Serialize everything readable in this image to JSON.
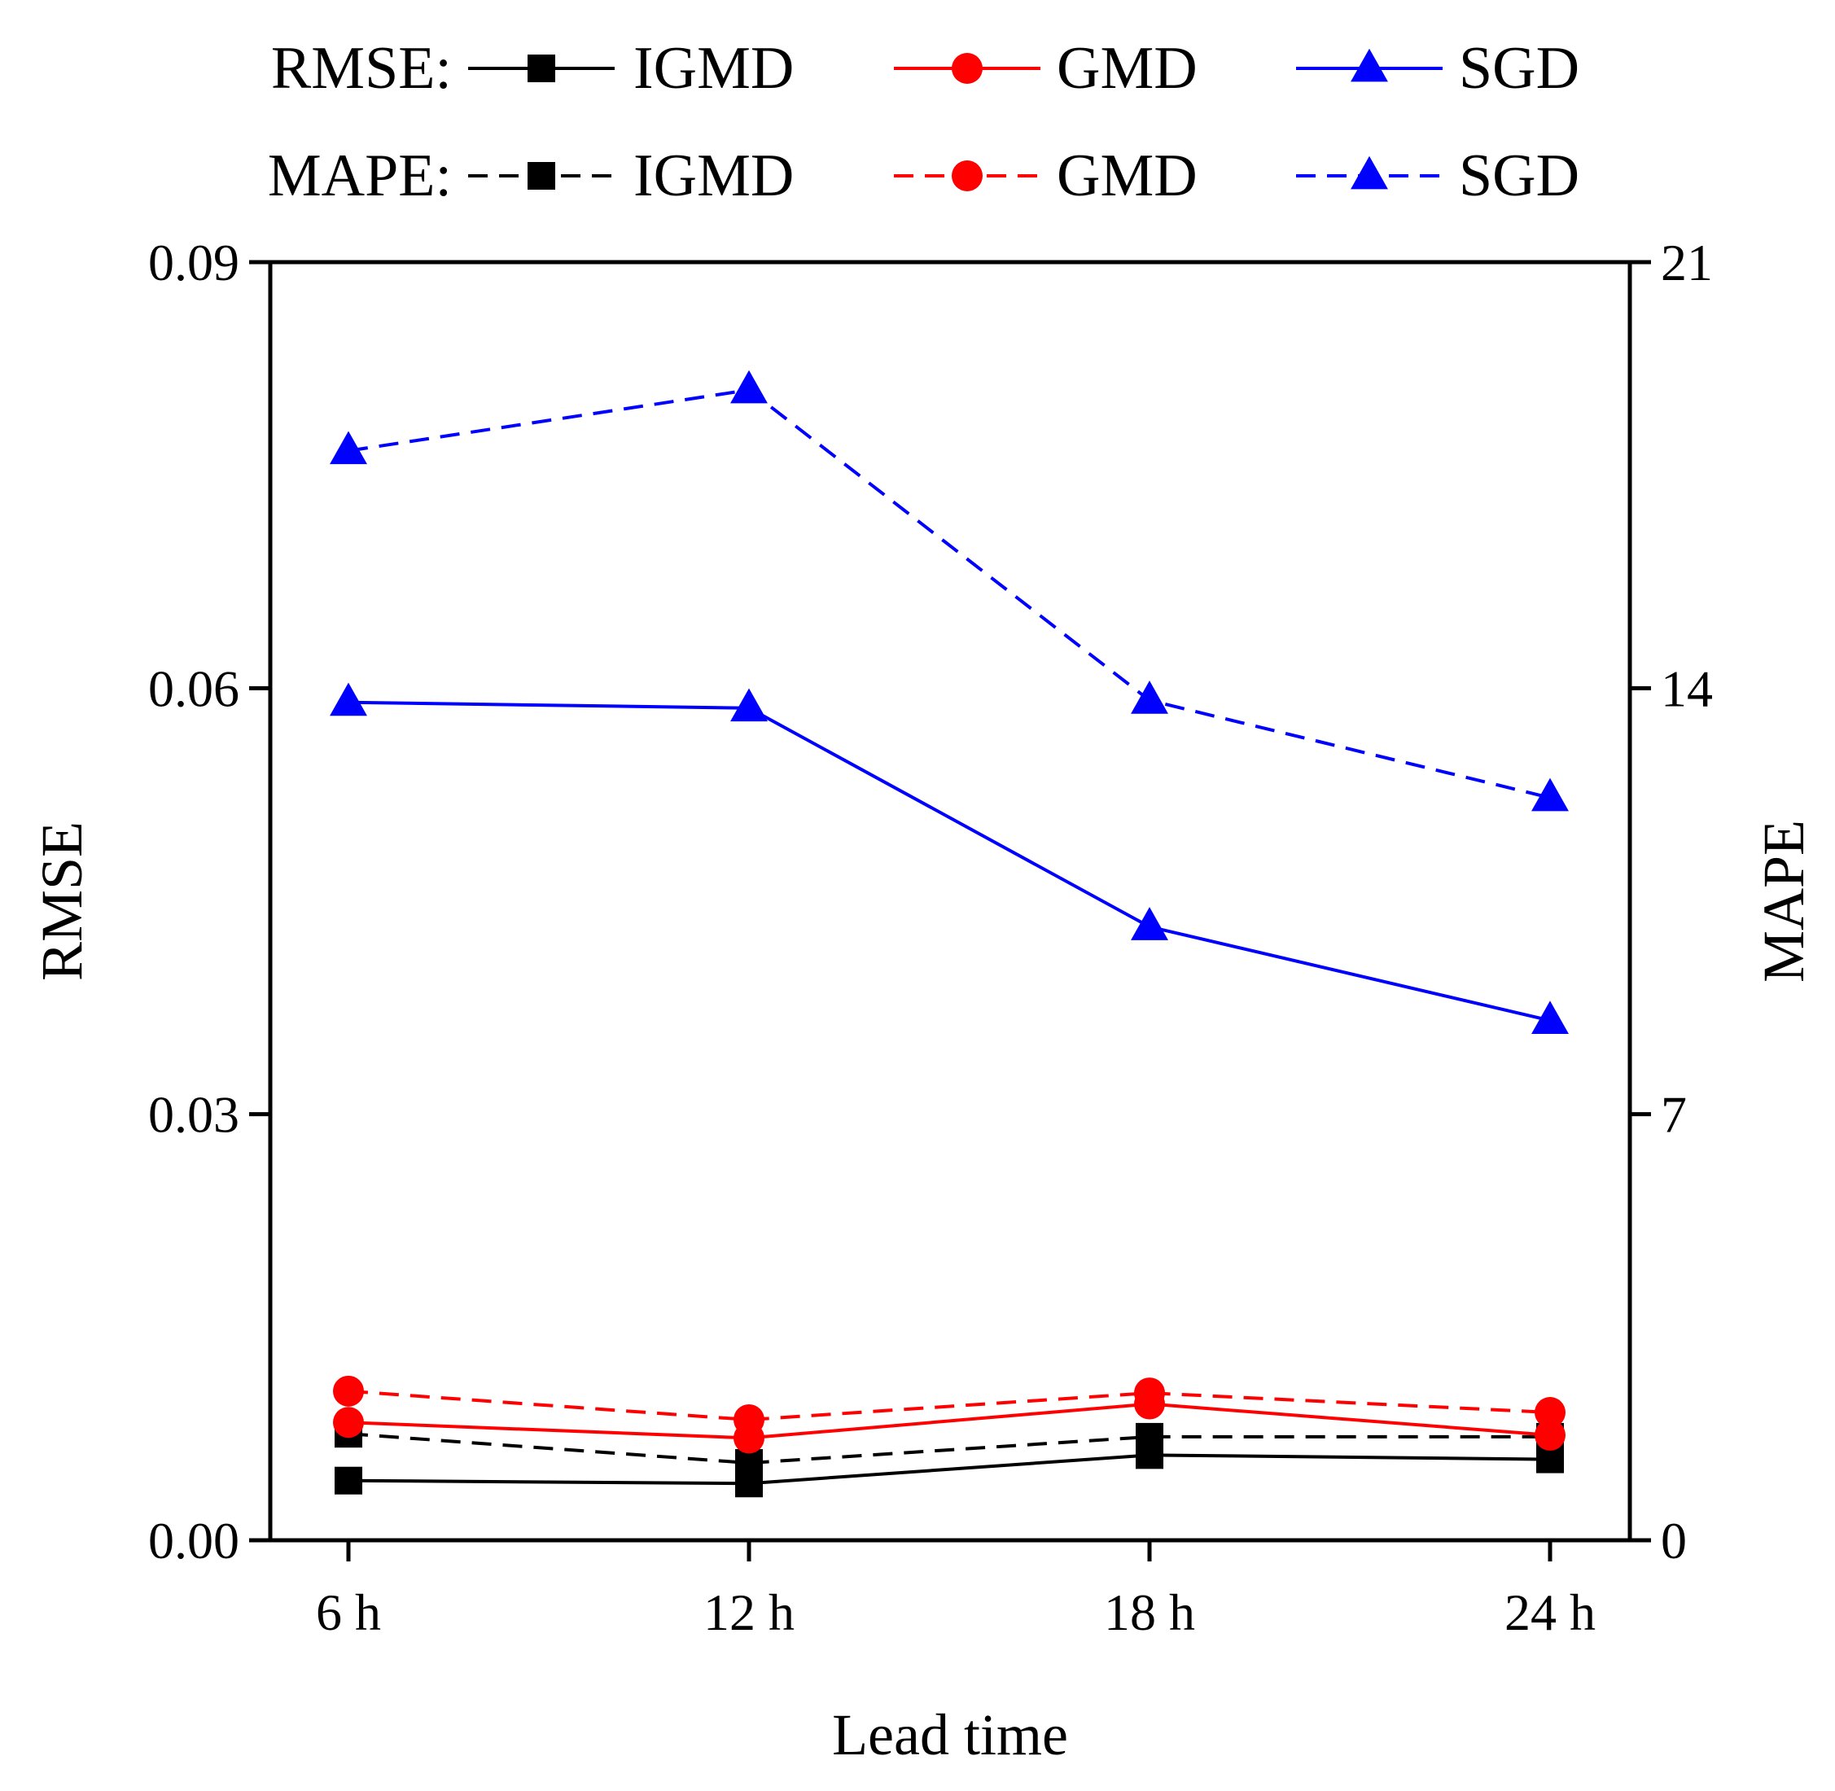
{
  "chart_data": {
    "type": "line",
    "categories": [
      "6 h",
      "12 h",
      "18 h",
      "24 h"
    ],
    "xlabel": "Lead time",
    "ylabel": "RMSE",
    "y2label": "MAPE",
    "ylim": [
      0,
      0.09
    ],
    "y2lim": [
      0,
      21
    ],
    "yticks": [
      "0.00",
      "0.03",
      "0.06",
      "0.09"
    ],
    "y2ticks": [
      "0",
      "7",
      "14",
      "21"
    ],
    "legend_placement": "top",
    "legend_groups": [
      {
        "label": "RMSE:",
        "style": "solid"
      },
      {
        "label": "MAPE:",
        "style": "dashed"
      }
    ],
    "series": [
      {
        "name": "IGMD",
        "metric": "RMSE",
        "axis": "left",
        "style": "solid",
        "marker": "square",
        "color": "#000000",
        "values": [
          0.0042,
          0.004,
          0.006,
          0.0057
        ]
      },
      {
        "name": "GMD",
        "metric": "RMSE",
        "axis": "left",
        "style": "solid",
        "marker": "circle",
        "color": "#ff0000",
        "values": [
          0.0083,
          0.0072,
          0.0096,
          0.0074
        ]
      },
      {
        "name": "SGD",
        "metric": "RMSE",
        "axis": "left",
        "style": "solid",
        "marker": "triangle",
        "color": "#0000ff",
        "values": [
          0.059,
          0.0586,
          0.0432,
          0.0366
        ]
      },
      {
        "name": "IGMD",
        "metric": "MAPE",
        "axis": "right",
        "style": "dashed",
        "marker": "square",
        "color": "#000000",
        "values": [
          1.75,
          1.27,
          1.7,
          1.7
        ]
      },
      {
        "name": "GMD",
        "metric": "MAPE",
        "axis": "right",
        "style": "dashed",
        "marker": "circle",
        "color": "#ff0000",
        "values": [
          2.45,
          1.98,
          2.42,
          2.1
        ]
      },
      {
        "name": "SGD",
        "metric": "MAPE",
        "axis": "right",
        "style": "dashed",
        "marker": "triangle",
        "color": "#0000ff",
        "values": [
          17.9,
          18.9,
          13.8,
          12.2
        ]
      }
    ]
  }
}
